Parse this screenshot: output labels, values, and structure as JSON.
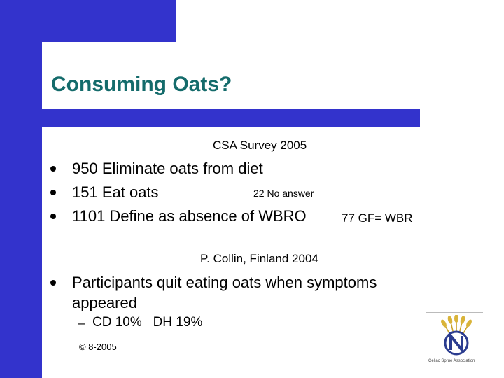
{
  "slide": {
    "title": "Consuming Oats?",
    "survey_caption": "CSA Survey 2005",
    "bullets": [
      {
        "text": "950 Eliminate oats from diet"
      },
      {
        "text": "151 Eat oats",
        "side_note": "22 No answer"
      },
      {
        "text": "1101 Define as absence of WBRO",
        "side_note": "77 GF= WBR"
      }
    ],
    "collin_caption": "P. Collin, Finland 2004",
    "participants_line1": " Participants quit eating oats when symptoms",
    "participants_line2": "appeared",
    "sub_dash": "–",
    "sub_text": "CD 10%   DH 19%",
    "copyright": "© 8-2005"
  },
  "logo": {
    "caption": "Celiac Sprue Association"
  },
  "colors": {
    "accent_blue": "#3333cc",
    "title_teal": "#146b6b"
  }
}
